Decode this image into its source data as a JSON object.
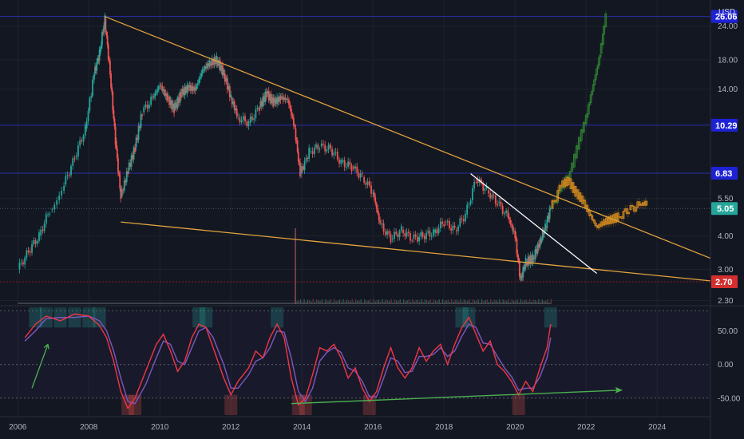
{
  "chart_data": [
    {
      "type": "candlestick",
      "currency": "USD",
      "y_scale": "log",
      "ylim": [
        2.2,
        29
      ],
      "xlim": [
        2005.5,
        2025.5
      ],
      "x_ticks": [
        "2006",
        "2008",
        "2010",
        "2012",
        "2014",
        "2016",
        "2018",
        "2020",
        "2022",
        "2024"
      ],
      "y_ticks": [
        "2.30",
        "3.00",
        "4.00",
        "5.50",
        "14.00",
        "18.00",
        "24.00"
      ],
      "price_levels": [
        {
          "value": 26.06,
          "label": "26.06",
          "color": "#1e22d6",
          "line": "#2a2ea8"
        },
        {
          "value": 10.29,
          "label": "10.29",
          "color": "#1e22d6",
          "line": "#2a2ea8"
        },
        {
          "value": 6.83,
          "label": "6.83",
          "color": "#1e22d6",
          "line": "#2a2ea8"
        },
        {
          "value": 2.7,
          "label": "2.70",
          "color": "#d32f2f",
          "line": "#8b1e1e"
        }
      ],
      "last_price": {
        "value": 5.05,
        "label": "5.05",
        "color": "#26a69a"
      },
      "price_series": [
        [
          2006.0,
          3.0
        ],
        [
          2006.3,
          3.5
        ],
        [
          2006.6,
          4.0
        ],
        [
          2006.9,
          5.0
        ],
        [
          2007.3,
          6.2
        ],
        [
          2007.6,
          7.8
        ],
        [
          2007.9,
          10.0
        ],
        [
          2008.15,
          16.0
        ],
        [
          2008.3,
          19.0
        ],
        [
          2008.45,
          25.5
        ],
        [
          2008.6,
          16.0
        ],
        [
          2008.75,
          9.0
        ],
        [
          2008.9,
          5.6
        ],
        [
          2009.1,
          7.0
        ],
        [
          2009.3,
          8.5
        ],
        [
          2009.5,
          11.5
        ],
        [
          2009.8,
          13.0
        ],
        [
          2010.0,
          14.5
        ],
        [
          2010.2,
          13.0
        ],
        [
          2010.4,
          11.8
        ],
        [
          2010.6,
          13.5
        ],
        [
          2010.8,
          14.2
        ],
        [
          2011.0,
          14.0
        ],
        [
          2011.2,
          16.5
        ],
        [
          2011.4,
          17.5
        ],
        [
          2011.6,
          18.0
        ],
        [
          2011.8,
          16.0
        ],
        [
          2012.0,
          13.0
        ],
        [
          2012.2,
          11.0
        ],
        [
          2012.5,
          10.5
        ],
        [
          2012.8,
          12.0
        ],
        [
          2013.0,
          13.5
        ],
        [
          2013.2,
          12.5
        ],
        [
          2013.4,
          13.0
        ],
        [
          2013.6,
          12.8
        ],
        [
          2013.8,
          10.0
        ],
        [
          2013.95,
          6.8
        ],
        [
          2014.2,
          8.2
        ],
        [
          2014.5,
          8.6
        ],
        [
          2014.8,
          8.4
        ],
        [
          2015.1,
          7.5
        ],
        [
          2015.4,
          7.2
        ],
        [
          2015.7,
          6.6
        ],
        [
          2016.0,
          5.8
        ],
        [
          2016.2,
          4.4
        ],
        [
          2016.5,
          3.9
        ],
        [
          2016.8,
          4.2
        ],
        [
          2017.1,
          3.9
        ],
        [
          2017.4,
          4.0
        ],
        [
          2017.7,
          4.1
        ],
        [
          2018.0,
          4.5
        ],
        [
          2018.3,
          4.2
        ],
        [
          2018.6,
          4.8
        ],
        [
          2018.9,
          6.5
        ],
        [
          2019.2,
          5.9
        ],
        [
          2019.5,
          5.3
        ],
        [
          2019.8,
          4.7
        ],
        [
          2020.0,
          4.0
        ],
        [
          2020.15,
          2.75
        ],
        [
          2020.3,
          3.2
        ],
        [
          2020.5,
          3.3
        ],
        [
          2020.7,
          3.8
        ],
        [
          2020.85,
          4.3
        ],
        [
          2021.0,
          5.05
        ]
      ],
      "projection_up": [
        [
          2021.0,
          5.05
        ],
        [
          2021.3,
          6.0
        ],
        [
          2021.6,
          7.2
        ],
        [
          2021.8,
          9.0
        ],
        [
          2022.0,
          11.0
        ],
        [
          2022.2,
          14.5
        ],
        [
          2022.4,
          19.0
        ],
        [
          2022.55,
          26.06
        ]
      ],
      "projection_alt": [
        [
          2021.0,
          5.05
        ],
        [
          2021.3,
          6.2
        ],
        [
          2021.5,
          6.4
        ],
        [
          2021.7,
          5.8
        ],
        [
          2021.9,
          5.4
        ],
        [
          2022.1,
          4.8
        ],
        [
          2022.3,
          4.3
        ],
        [
          2022.5,
          4.5
        ],
        [
          2022.7,
          4.6
        ],
        [
          2022.9,
          4.7
        ],
        [
          2023.2,
          5.0
        ],
        [
          2023.5,
          5.2
        ],
        [
          2023.7,
          5.3
        ]
      ],
      "trendlines": [
        {
          "name": "upper",
          "color": "#e2a33c",
          "from": [
            2008.45,
            26.06
          ],
          "to": [
            2025.5,
            3.3
          ]
        },
        {
          "name": "lower",
          "color": "#e2a33c",
          "from": [
            2008.9,
            4.5
          ],
          "to": [
            2025.5,
            2.72
          ]
        },
        {
          "name": "break",
          "color": "#ffffff",
          "from": [
            2018.75,
            6.8
          ],
          "to": [
            2022.3,
            2.9
          ]
        }
      ],
      "volume": {
        "spike": {
          "x": 2013.8,
          "fraction": 1.0
        },
        "baseline_fraction": 0.06
      }
    },
    {
      "type": "line",
      "ylim": [
        -75,
        85
      ],
      "y_ticks": [
        "50.00",
        "0.00",
        "-50.00"
      ],
      "levels": [
        80,
        0,
        -50
      ],
      "series": [
        {
          "color": "#f23645",
          "values": [
            [
              2006.2,
              40
            ],
            [
              2006.5,
              60
            ],
            [
              2006.8,
              72
            ],
            [
              2007.2,
              65
            ],
            [
              2007.6,
              75
            ],
            [
              2008.0,
              72
            ],
            [
              2008.3,
              58
            ],
            [
              2008.5,
              40
            ],
            [
              2008.7,
              5
            ],
            [
              2008.9,
              -40
            ],
            [
              2009.1,
              -65
            ],
            [
              2009.3,
              -50
            ],
            [
              2009.6,
              -10
            ],
            [
              2009.9,
              30
            ],
            [
              2010.1,
              45
            ],
            [
              2010.3,
              20
            ],
            [
              2010.5,
              -10
            ],
            [
              2010.7,
              5
            ],
            [
              2010.9,
              40
            ],
            [
              2011.1,
              60
            ],
            [
              2011.3,
              55
            ],
            [
              2011.5,
              25
            ],
            [
              2011.8,
              -20
            ],
            [
              2012.0,
              -45
            ],
            [
              2012.2,
              -25
            ],
            [
              2012.5,
              -5
            ],
            [
              2012.7,
              20
            ],
            [
              2012.9,
              10
            ],
            [
              2013.1,
              40
            ],
            [
              2013.3,
              60
            ],
            [
              2013.5,
              40
            ],
            [
              2013.7,
              -20
            ],
            [
              2013.9,
              -60
            ],
            [
              2014.1,
              -50
            ],
            [
              2014.3,
              -15
            ],
            [
              2014.5,
              25
            ],
            [
              2014.7,
              20
            ],
            [
              2014.9,
              30
            ],
            [
              2015.1,
              10
            ],
            [
              2015.3,
              -20
            ],
            [
              2015.5,
              -5
            ],
            [
              2015.7,
              -35
            ],
            [
              2015.9,
              -55
            ],
            [
              2016.1,
              -40
            ],
            [
              2016.3,
              -5
            ],
            [
              2016.5,
              25
            ],
            [
              2016.7,
              -5
            ],
            [
              2016.9,
              -20
            ],
            [
              2017.1,
              -5
            ],
            [
              2017.3,
              25
            ],
            [
              2017.5,
              5
            ],
            [
              2017.7,
              20
            ],
            [
              2017.9,
              30
            ],
            [
              2018.1,
              0
            ],
            [
              2018.3,
              30
            ],
            [
              2018.5,
              55
            ],
            [
              2018.7,
              70
            ],
            [
              2018.9,
              45
            ],
            [
              2019.1,
              20
            ],
            [
              2019.3,
              35
            ],
            [
              2019.5,
              0
            ],
            [
              2019.7,
              -10
            ],
            [
              2019.9,
              -25
            ],
            [
              2020.1,
              -45
            ],
            [
              2020.3,
              -25
            ],
            [
              2020.5,
              -40
            ],
            [
              2020.7,
              -5
            ],
            [
              2020.9,
              25
            ],
            [
              2021.0,
              60
            ]
          ]
        },
        {
          "color": "#7e57c2",
          "values": [
            [
              2006.2,
              35
            ],
            [
              2006.5,
              50
            ],
            [
              2006.8,
              68
            ],
            [
              2007.2,
              70
            ],
            [
              2007.6,
              70
            ],
            [
              2008.0,
              72
            ],
            [
              2008.3,
              65
            ],
            [
              2008.5,
              50
            ],
            [
              2008.7,
              20
            ],
            [
              2008.9,
              -20
            ],
            [
              2009.1,
              -55
            ],
            [
              2009.3,
              -58
            ],
            [
              2009.6,
              -30
            ],
            [
              2009.9,
              10
            ],
            [
              2010.1,
              35
            ],
            [
              2010.3,
              30
            ],
            [
              2010.5,
              5
            ],
            [
              2010.7,
              0
            ],
            [
              2010.9,
              25
            ],
            [
              2011.1,
              50
            ],
            [
              2011.3,
              55
            ],
            [
              2011.5,
              40
            ],
            [
              2011.8,
              0
            ],
            [
              2012.0,
              -35
            ],
            [
              2012.2,
              -35
            ],
            [
              2012.5,
              -15
            ],
            [
              2012.7,
              5
            ],
            [
              2012.9,
              10
            ],
            [
              2013.1,
              25
            ],
            [
              2013.3,
              50
            ],
            [
              2013.5,
              48
            ],
            [
              2013.7,
              10
            ],
            [
              2013.9,
              -40
            ],
            [
              2014.1,
              -55
            ],
            [
              2014.3,
              -35
            ],
            [
              2014.5,
              5
            ],
            [
              2014.7,
              18
            ],
            [
              2014.9,
              25
            ],
            [
              2015.1,
              18
            ],
            [
              2015.3,
              -5
            ],
            [
              2015.5,
              -10
            ],
            [
              2015.7,
              -25
            ],
            [
              2015.9,
              -48
            ],
            [
              2016.1,
              -48
            ],
            [
              2016.3,
              -20
            ],
            [
              2016.5,
              10
            ],
            [
              2016.7,
              5
            ],
            [
              2016.9,
              -12
            ],
            [
              2017.1,
              -10
            ],
            [
              2017.3,
              12
            ],
            [
              2017.5,
              12
            ],
            [
              2017.7,
              15
            ],
            [
              2017.9,
              25
            ],
            [
              2018.1,
              12
            ],
            [
              2018.3,
              20
            ],
            [
              2018.5,
              42
            ],
            [
              2018.7,
              60
            ],
            [
              2018.9,
              55
            ],
            [
              2019.1,
              32
            ],
            [
              2019.3,
              30
            ],
            [
              2019.5,
              12
            ],
            [
              2019.7,
              -5
            ],
            [
              2019.9,
              -18
            ],
            [
              2020.1,
              -38
            ],
            [
              2020.3,
              -35
            ],
            [
              2020.5,
              -35
            ],
            [
              2020.7,
              -18
            ],
            [
              2020.9,
              10
            ],
            [
              2021.0,
              40
            ]
          ]
        }
      ],
      "divergence_line": {
        "color": "#4caf50",
        "from": [
          2013.7,
          -58
        ],
        "to": [
          2023.0,
          -38
        ]
      },
      "marker_arrow": {
        "color": "#4caf50",
        "from": [
          2006.4,
          -35
        ],
        "to": [
          2006.85,
          30
        ]
      }
    }
  ]
}
